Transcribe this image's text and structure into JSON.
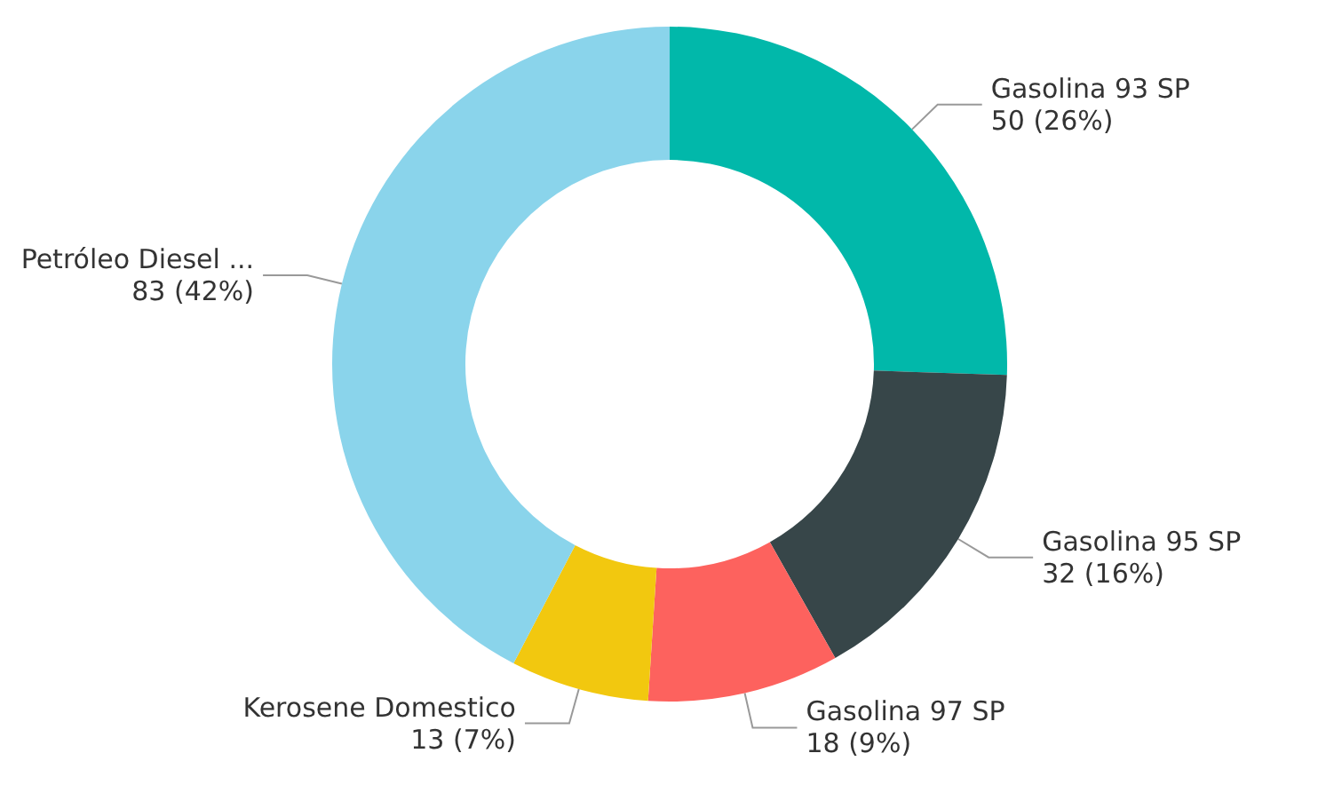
{
  "chart_data": {
    "type": "donut",
    "categories": [
      "Gasolina 93 SP",
      "Gasolina 95 SP",
      "Gasolina 97 SP",
      "Kerosene Domestico",
      "Petróleo Diesel ..."
    ],
    "values": [
      50,
      32,
      18,
      13,
      83
    ],
    "colors": [
      "#01b8aa",
      "#374649",
      "#fd625e",
      "#f2c80f",
      "#8ad4eb"
    ],
    "value_labels": [
      "50 (26%)",
      "32 (16%)",
      "18 (9%)",
      "13 (7%)",
      "83 (42%)"
    ],
    "legend": false
  }
}
